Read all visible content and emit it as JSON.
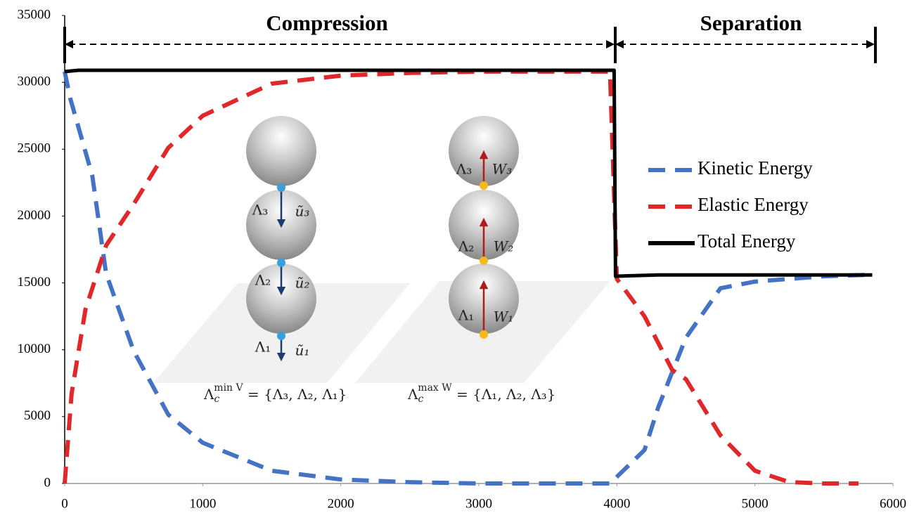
{
  "chart_data": {
    "type": "line",
    "xlim": [
      0,
      6000
    ],
    "xticks": [
      0,
      1000,
      2000,
      3000,
      4000,
      5000,
      6000
    ],
    "ylim": [
      0,
      35000
    ],
    "yticks": [
      0,
      5000,
      10000,
      15000,
      20000,
      25000,
      30000,
      35000
    ],
    "grid": false,
    "legend": "right",
    "annotations": {
      "compression": "Compression",
      "separation": "Separation"
    },
    "inset": {
      "left_labels": [
        "Λ₃",
        "ũ₃",
        "Λ₂",
        "ũ₂",
        "Λ₁",
        "ũ₁"
      ],
      "right_labels": [
        "Λ₃",
        "W₃",
        "Λ₂",
        "W₂",
        "Λ₁",
        "W₁"
      ],
      "left_set": {
        "symbol": "Λ",
        "sub": "c",
        "sup": "min V",
        "rest": " = {Λ₃, Λ₂, Λ₁}"
      },
      "right_set": {
        "symbol": "Λ",
        "sub": "c",
        "sup": "max W",
        "rest": " = {Λ₁, Λ₂, Λ₃}"
      }
    },
    "series": [
      {
        "name": "Kinetic Energy",
        "color": "#4472c4",
        "dash": true,
        "x": [
          0,
          40,
          200,
          300,
          500,
          750,
          1000,
          1500,
          2000,
          2500,
          3000,
          3500,
          3950,
          4000,
          4200,
          4300,
          4500,
          4750,
          5000,
          5500,
          5800
        ],
        "values": [
          30800,
          28800,
          23000,
          15700,
          9900,
          5150,
          3050,
          950,
          300,
          100,
          0,
          0,
          0,
          500,
          2500,
          5700,
          10900,
          14600,
          15100,
          15500,
          15600
        ]
      },
      {
        "name": "Elastic Energy",
        "color": "#e0282a",
        "dash": true,
        "x": [
          0,
          50,
          150,
          300,
          500,
          750,
          1000,
          1500,
          2000,
          2500,
          3000,
          3500,
          3950,
          4000,
          4200,
          4400,
          4500,
          4750,
          5000,
          5250,
          5500,
          5750
        ],
        "values": [
          0,
          6700,
          13000,
          17800,
          20900,
          25100,
          27500,
          29900,
          30500,
          30700,
          30800,
          30800,
          30800,
          15300,
          12500,
          8500,
          7800,
          3600,
          950,
          100,
          0,
          0
        ]
      },
      {
        "name": "Total Energy",
        "color": "#000000",
        "dash": false,
        "x": [
          0,
          100,
          3980,
          3990,
          4300,
          5850
        ],
        "values": [
          30800,
          30900,
          30900,
          15500,
          15600,
          15600
        ]
      }
    ]
  }
}
